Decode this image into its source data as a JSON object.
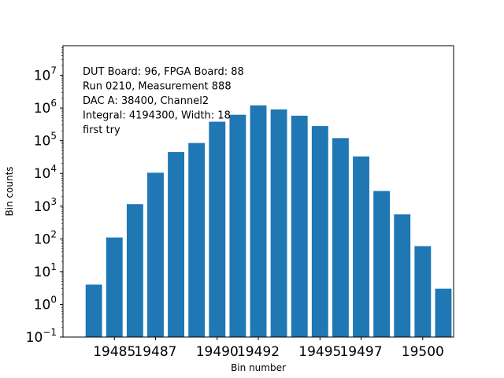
{
  "chart_data": {
    "type": "bar",
    "xlabel": "Bin number",
    "ylabel": "Bin counts",
    "yscale": "log",
    "ylim": [
      0.1,
      80000000
    ],
    "xlim": [
      19482.5,
      19501.5
    ],
    "color": "#1f77b4",
    "grid": false,
    "x": [
      19484,
      19485,
      19486,
      19487,
      19488,
      19489,
      19490,
      19491,
      19492,
      19493,
      19494,
      19495,
      19496,
      19497,
      19498,
      19499,
      19500,
      19501
    ],
    "values": [
      4,
      110,
      1150,
      10500,
      45000,
      85000,
      380000,
      620000,
      1200000,
      900000,
      580000,
      280000,
      120000,
      33000,
      2900,
      560,
      60,
      3
    ],
    "xticks": [
      19485,
      19487,
      19490,
      19492,
      19495,
      19497,
      19500
    ],
    "xtick_labels": [
      "19485",
      "19487",
      "19490",
      "19492",
      "19495",
      "19497",
      "19500"
    ],
    "yticks": [
      {
        "base": "10",
        "exp": "−1",
        "value": 0.1
      },
      {
        "base": "10",
        "exp": "0",
        "value": 1
      },
      {
        "base": "10",
        "exp": "1",
        "value": 10
      },
      {
        "base": "10",
        "exp": "2",
        "value": 100
      },
      {
        "base": "10",
        "exp": "3",
        "value": 1000
      },
      {
        "base": "10",
        "exp": "4",
        "value": 10000
      },
      {
        "base": "10",
        "exp": "5",
        "value": 100000
      },
      {
        "base": "10",
        "exp": "6",
        "value": 1000000
      },
      {
        "base": "10",
        "exp": "7",
        "value": 10000000
      }
    ],
    "annotation_lines": [
      "DUT Board: 96, FPGA Board: 88",
      "Run 0210, Measurement 888",
      "DAC A: 38400, Channel2",
      "Integral: 4194300, Width: 18",
      "first try"
    ]
  }
}
